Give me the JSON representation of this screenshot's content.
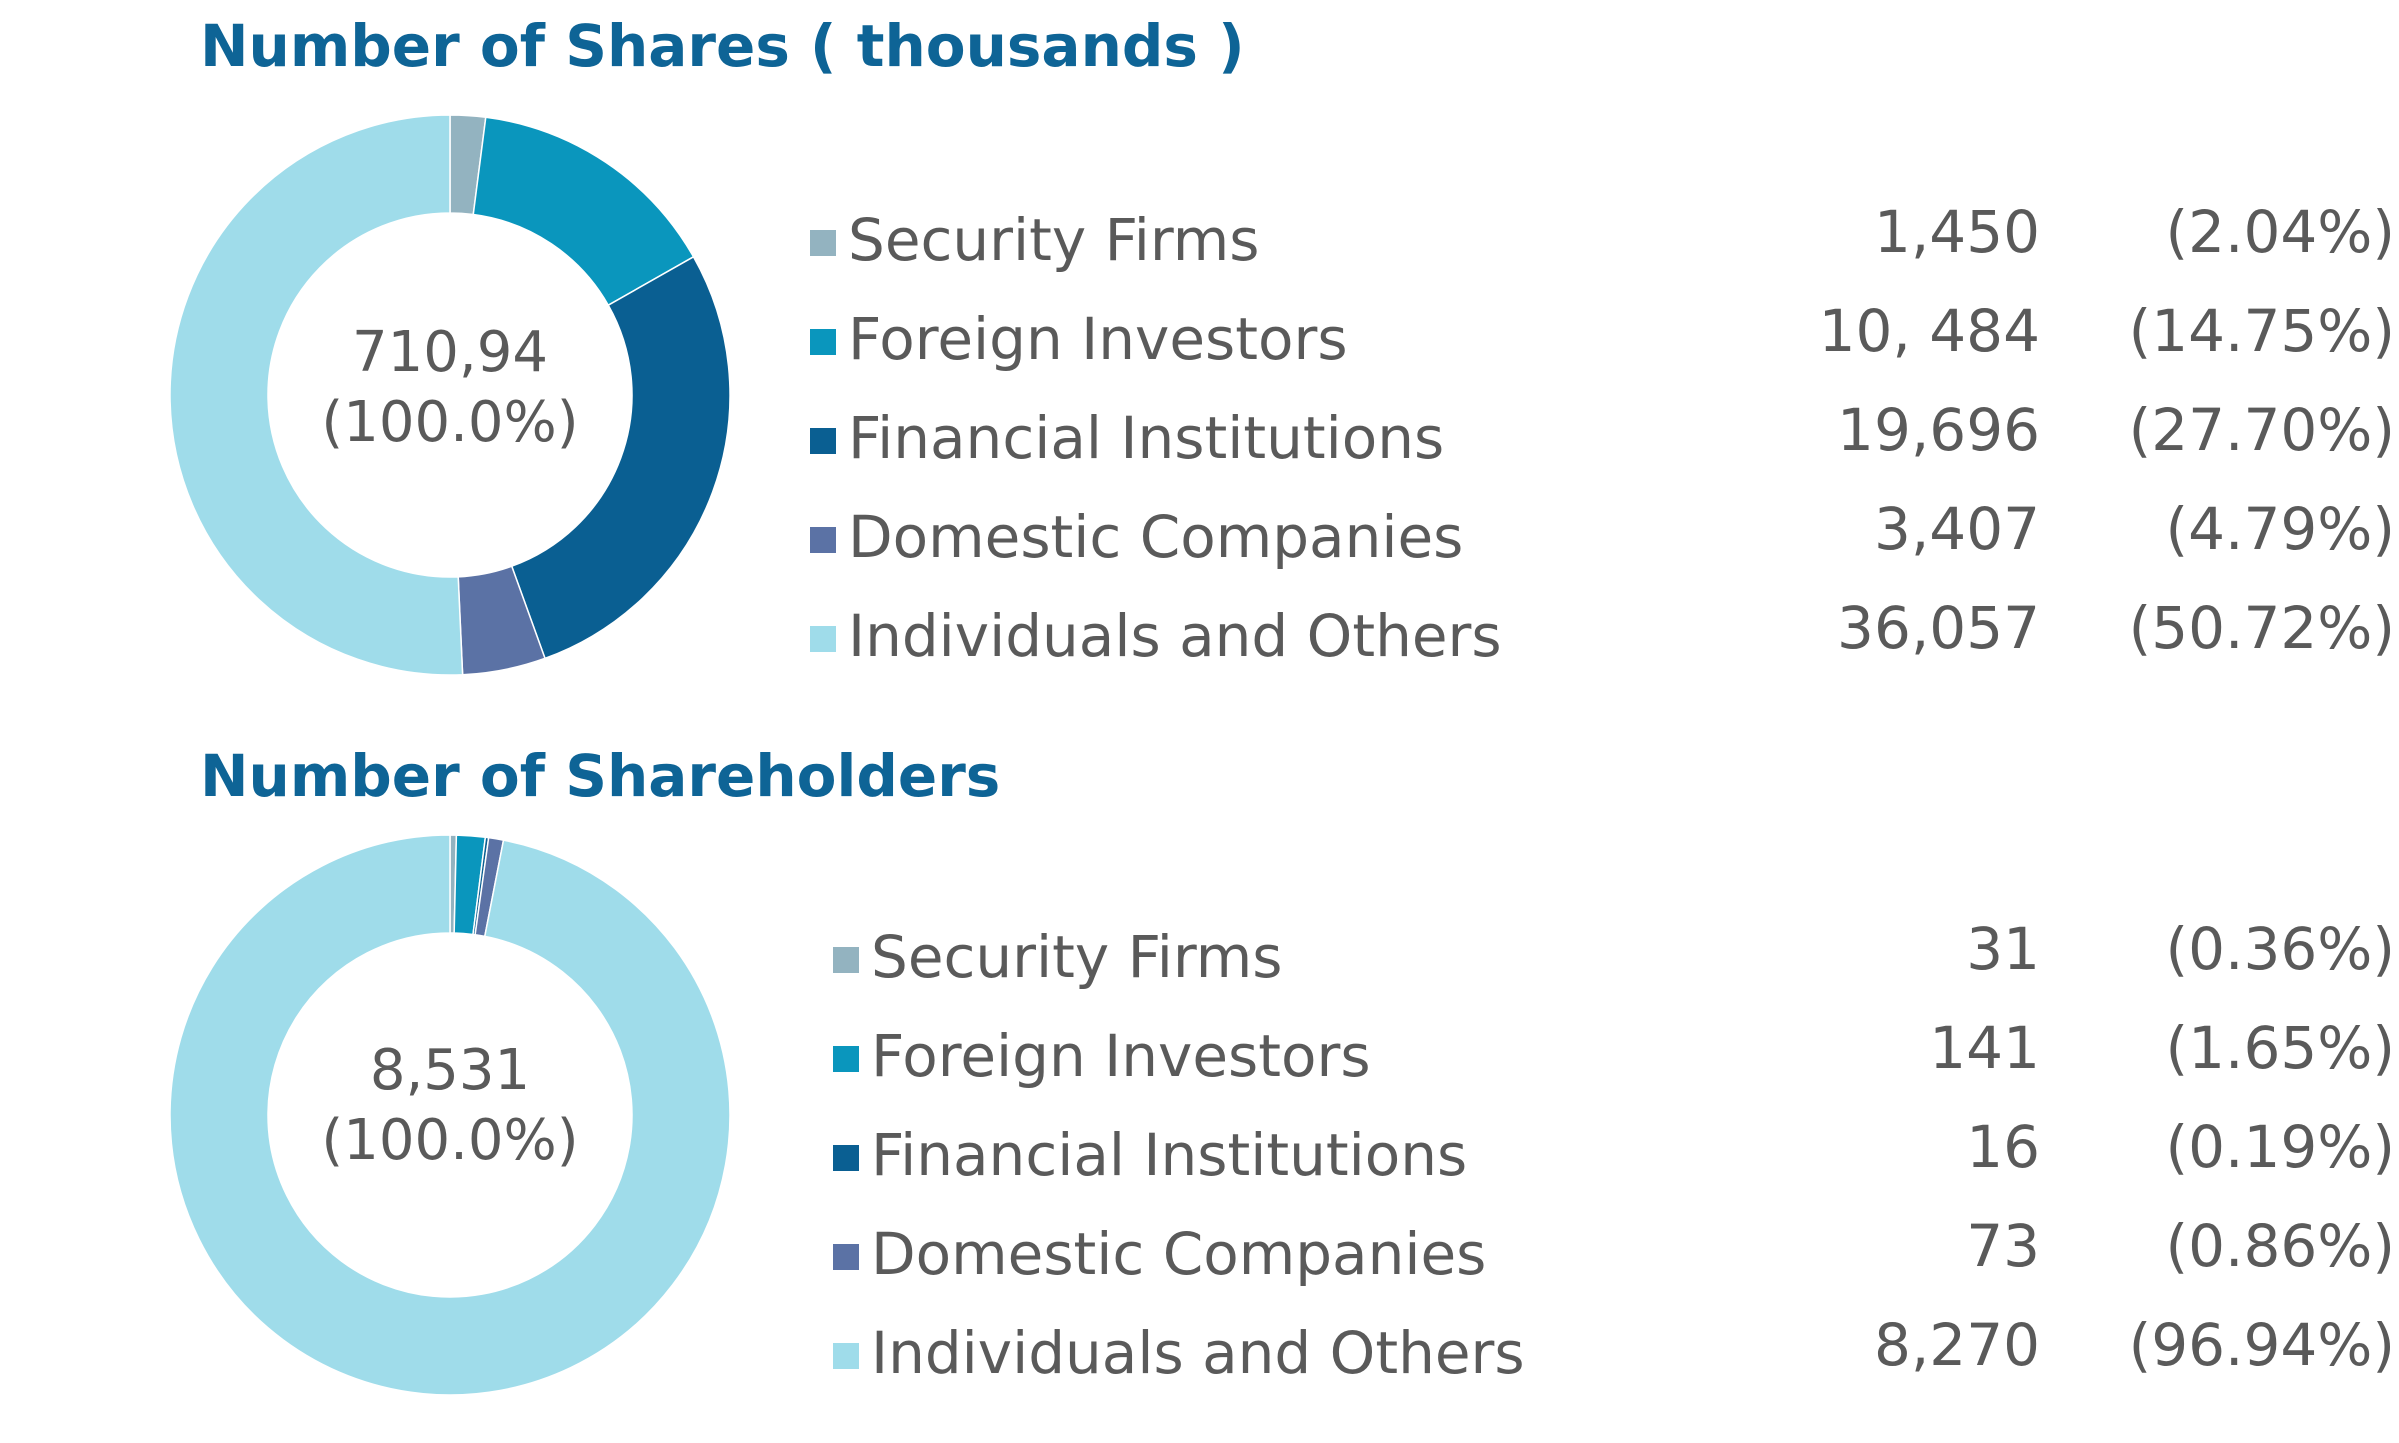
{
  "colors": {
    "title": "#0e6496",
    "text": "#5a5a5a",
    "security_firms": "#93b3c0",
    "foreign_investors": "#0a96bd",
    "financial_institutions": "#0a5f92",
    "domestic_companies": "#5b72a5",
    "individuals_and_others": "#9fdcea"
  },
  "chart_data": [
    {
      "type": "pie",
      "title": "Number of Shares ( thousands )",
      "center_value": "710,94",
      "center_percent": "(100.0%)",
      "categories": [
        "Security Firms",
        "Foreign Investors",
        "Financial Institutions",
        "Domestic Companies",
        "Individuals and Others"
      ],
      "values": [
        1450,
        10484,
        19696,
        3407,
        36057
      ],
      "value_labels": [
        "1,450",
        "10, 484",
        "19,696",
        "3,407",
        "36,057"
      ],
      "percent_labels": [
        "(2.04%)",
        "(14.75%)",
        "(27.70%)",
        "(4.79%)",
        "(50.72%)"
      ],
      "percents": [
        2.04,
        14.75,
        27.7,
        4.79,
        50.72
      ],
      "legend": "right"
    },
    {
      "type": "pie",
      "title": "Number of Shareholders",
      "center_value": "8,531",
      "center_percent": "(100.0%)",
      "categories": [
        "Security Firms",
        "Foreign Investors",
        "Financial Institutions",
        "Domestic Companies",
        "Individuals and Others"
      ],
      "values": [
        31,
        141,
        16,
        73,
        8270
      ],
      "value_labels": [
        "31",
        "141",
        "16",
        "73",
        "8,270"
      ],
      "percent_labels": [
        "(0.36%)",
        "(1.65%)",
        "(0.19%)",
        "(0.86%)",
        "(96.94%)"
      ],
      "percents": [
        0.36,
        1.65,
        0.19,
        0.86,
        96.94
      ],
      "legend": "right"
    }
  ]
}
